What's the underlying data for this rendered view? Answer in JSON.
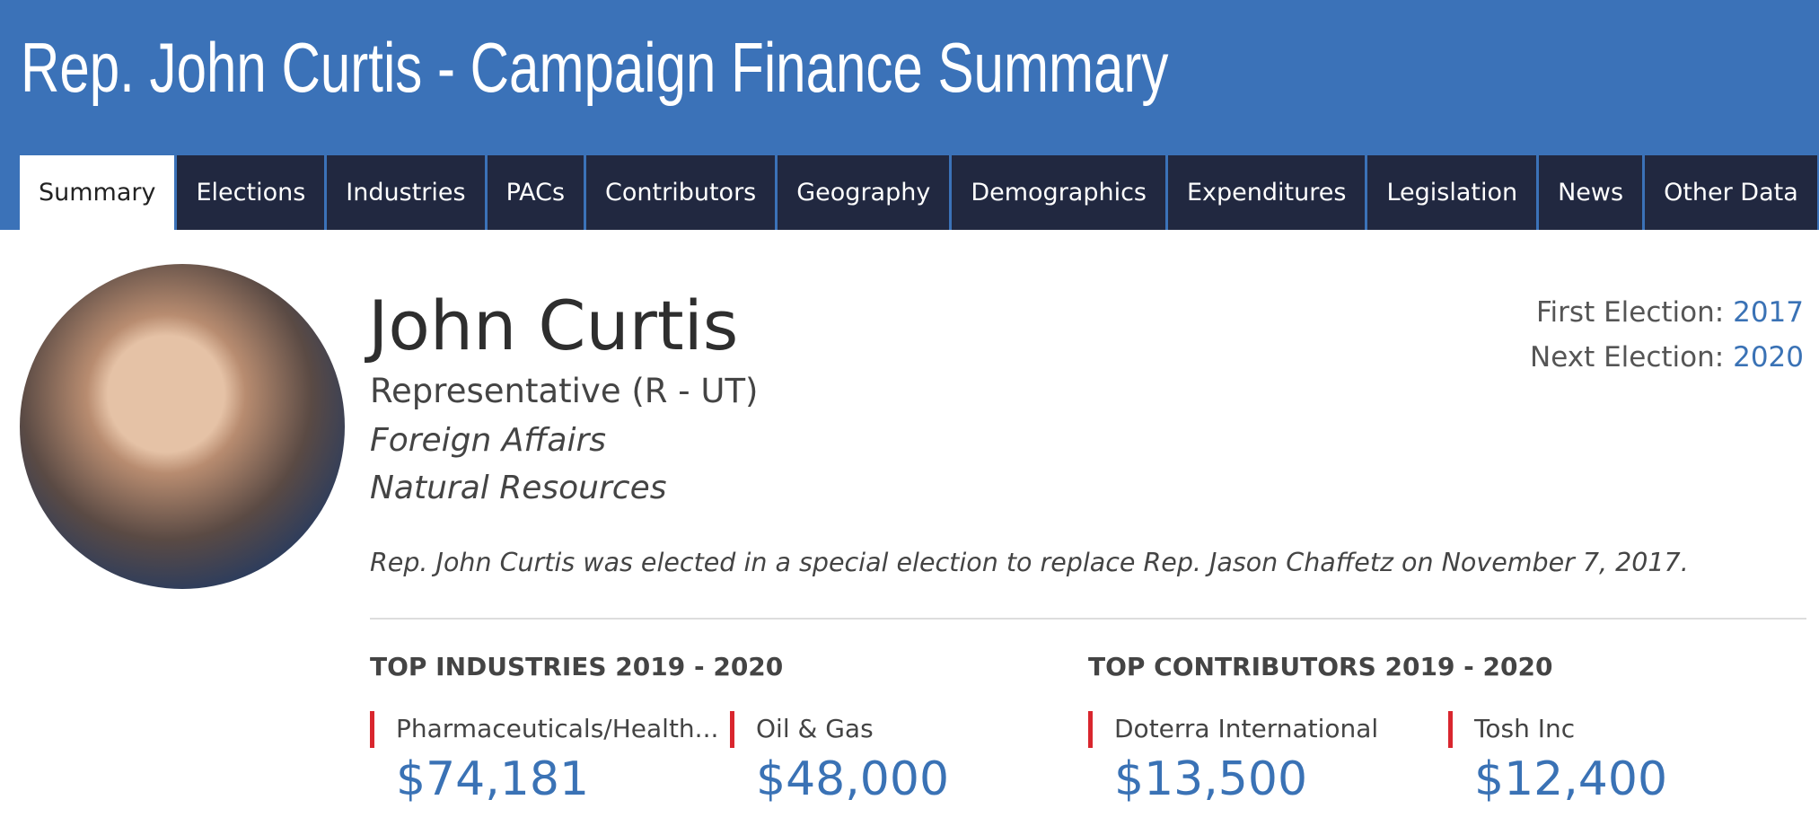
{
  "header": {
    "title": "Rep. John Curtis - Campaign Finance Summary"
  },
  "nav": {
    "tabs": [
      "Summary",
      "Elections",
      "Industries",
      "PACs",
      "Contributors",
      "Geography",
      "Demographics",
      "Expenditures",
      "Legislation",
      "News",
      "Other Data"
    ],
    "active": "Summary"
  },
  "profile": {
    "name": "John Curtis",
    "role": "Representative (R - UT)",
    "committees": [
      "Foreign Affairs",
      "Natural Resources"
    ],
    "note": "Rep. John Curtis was elected in a special election to replace Rep. Jason Chaffetz on November 7, 2017.",
    "first_election": {
      "label": "First Election:",
      "value": "2017"
    },
    "next_election": {
      "label": "Next Election:",
      "value": "2020"
    }
  },
  "sections": [
    {
      "title": "TOP INDUSTRIES 2019 - 2020",
      "items": [
        {
          "name": "Pharmaceuticals/Health...",
          "amount": "$74,181"
        },
        {
          "name": "Oil & Gas",
          "amount": "$48,000"
        }
      ]
    },
    {
      "title": "TOP CONTRIBUTORS 2019 - 2020",
      "items": [
        {
          "name": "Doterra International",
          "amount": "$13,500"
        },
        {
          "name": "Tosh Inc",
          "amount": "$12,400"
        }
      ]
    }
  ]
}
